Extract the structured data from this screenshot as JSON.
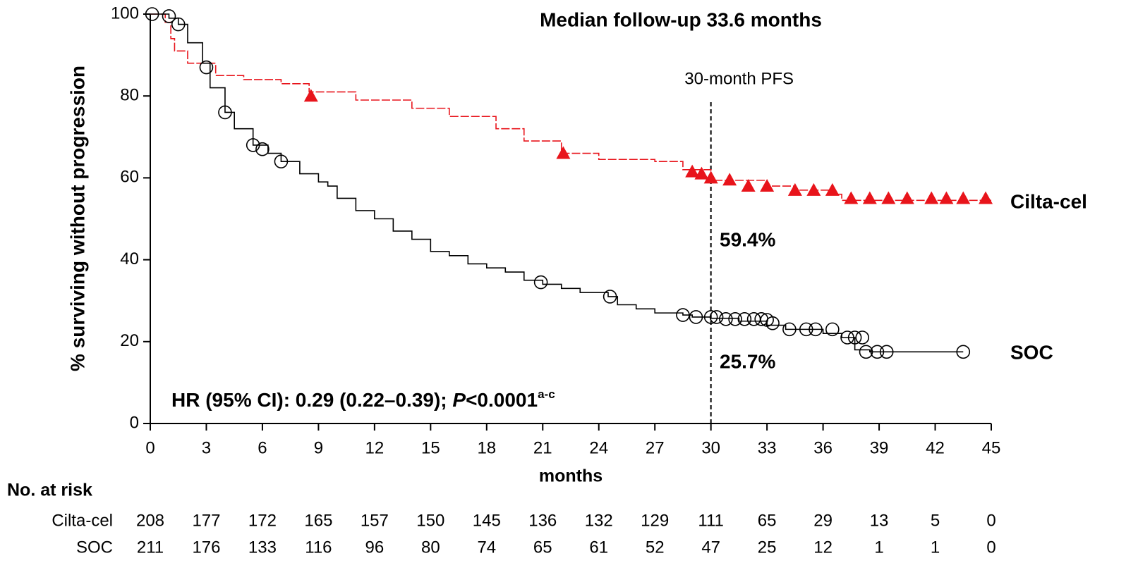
{
  "chart_data": {
    "type": "km",
    "title": "Median follow-up 33.6 months",
    "x_label": "months",
    "y_label": "% surviving without progression",
    "xlim": [
      0,
      45
    ],
    "xticks": [
      0,
      3,
      6,
      9,
      12,
      15,
      18,
      21,
      24,
      27,
      30,
      33,
      36,
      39,
      42,
      45
    ],
    "ylim": [
      0,
      100
    ],
    "yticks": [
      0,
      20,
      40,
      60,
      80,
      100
    ],
    "reference_line": {
      "x": 30,
      "label": "30-month PFS"
    },
    "series": [
      {
        "name": "Cilta-cel",
        "color": "#e8141b",
        "marker": "triangle",
        "dashed": true,
        "annotation": "59.4%",
        "x": [
          0,
          0.8,
          1.1,
          1.3,
          2,
          3.5,
          5,
          7,
          8.5,
          11,
          14,
          16,
          18.5,
          20,
          22,
          24,
          27,
          28.5,
          30,
          33,
          34.5,
          36.5,
          37,
          45
        ],
        "values": [
          100,
          98,
          94,
          91,
          88,
          85,
          84,
          83,
          81,
          79,
          77,
          75,
          72,
          69,
          66,
          64.5,
          64,
          62,
          59.4,
          58,
          57,
          56,
          54.5,
          54.5
        ],
        "censored": {
          "x": [
            8.6,
            22.1,
            29,
            29.5,
            30,
            31,
            32,
            33,
            34.5,
            35.5,
            36.5,
            37.5,
            38.5,
            39.5,
            40.5,
            41.8,
            42.6,
            43.5,
            44.7
          ],
          "values": [
            80,
            66,
            61.5,
            61,
            60,
            59.5,
            58,
            58,
            57,
            57,
            57,
            55,
            55,
            55,
            55,
            55,
            55,
            55,
            55
          ]
        }
      },
      {
        "name": "SOC",
        "color": "#000000",
        "marker": "circle-open",
        "dashed": false,
        "annotation": "25.7%",
        "x": [
          0,
          1,
          1.5,
          2,
          2.8,
          3.2,
          4,
          4.5,
          5.5,
          6.3,
          7,
          8,
          9,
          9.5,
          10,
          11,
          12,
          13,
          14,
          15,
          16,
          17,
          18,
          19,
          20,
          21,
          22,
          23,
          24.5,
          25,
          26,
          27,
          28.5,
          29,
          30,
          31.5,
          33,
          34,
          36,
          37,
          37.7,
          38.5,
          43.5
        ],
        "values": [
          100,
          99,
          97.5,
          93,
          88,
          82,
          76,
          72,
          68,
          66,
          64,
          61,
          59,
          58,
          55,
          52,
          50,
          47,
          45,
          42,
          41,
          39,
          38,
          37,
          35,
          34,
          33,
          32,
          31,
          29,
          28,
          27,
          26.5,
          26,
          25.7,
          25,
          24,
          23,
          22,
          21,
          18,
          17.5,
          17.5
        ],
        "censored": {
          "x": [
            0.1,
            1,
            1.5,
            3,
            4,
            5.5,
            6,
            7,
            20.9,
            24.6,
            28.5,
            29.2,
            30,
            30.3,
            30.8,
            31.3,
            31.8,
            32.3,
            32.7,
            33,
            33.3,
            34.2,
            35.1,
            35.6,
            36.5,
            37.3,
            37.7,
            38.1,
            38.3,
            38.9,
            39.4,
            43.5
          ],
          "values": [
            100,
            99.5,
            97.5,
            87,
            76,
            68,
            67,
            64,
            34.5,
            31,
            26.5,
            26,
            26,
            26,
            25.5,
            25.5,
            25.5,
            25.5,
            25.5,
            25.3,
            24.5,
            23,
            23,
            23,
            23,
            21,
            21,
            21,
            17.5,
            17.5,
            17.5,
            17.5
          ]
        }
      }
    ],
    "hr_text": {
      "main": "HR (95% CI): 0.29 (0.22–0.39); ",
      "italic": "P",
      "rest": "<0.0001",
      "sup": "a-c"
    },
    "at_risk": {
      "title": "No. at risk",
      "rows": [
        {
          "name": "Cilta-cel",
          "color": "#e8141b",
          "values": [
            208,
            177,
            172,
            165,
            157,
            150,
            145,
            136,
            132,
            129,
            111,
            65,
            29,
            13,
            5,
            0
          ]
        },
        {
          "name": "SOC",
          "color": "#000000",
          "values": [
            211,
            176,
            133,
            116,
            96,
            80,
            74,
            65,
            61,
            52,
            47,
            25,
            12,
            1,
            1,
            0
          ]
        }
      ]
    }
  }
}
